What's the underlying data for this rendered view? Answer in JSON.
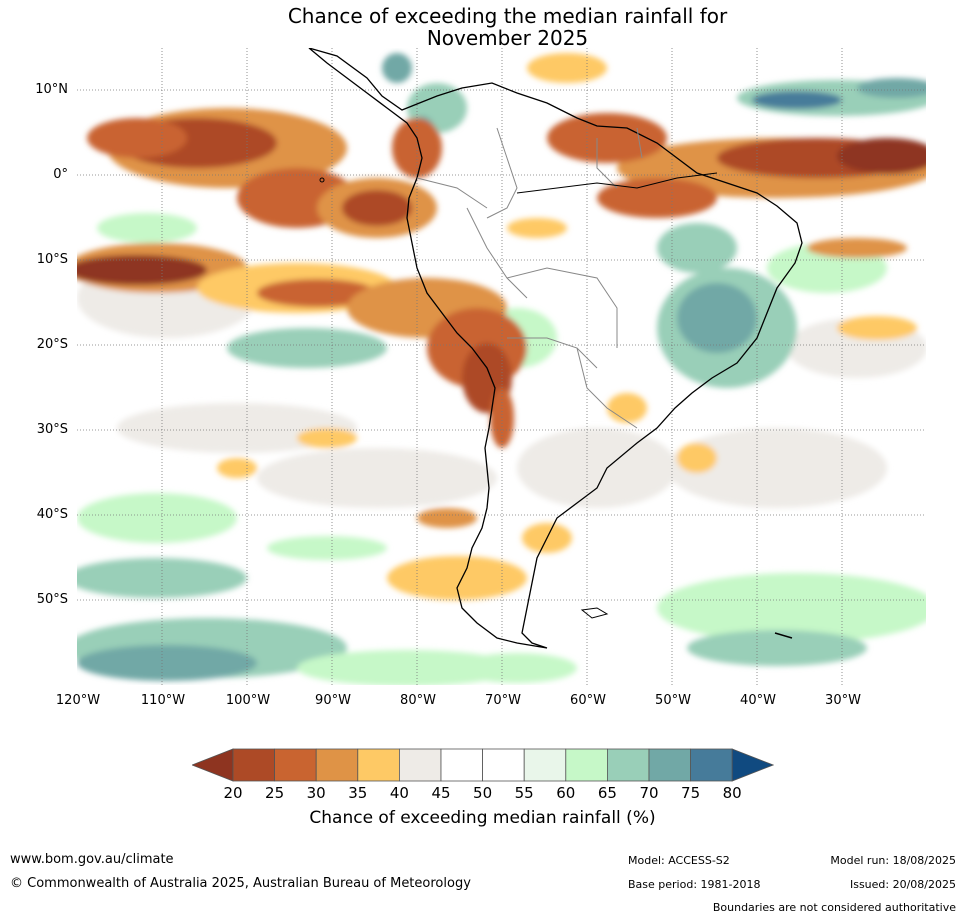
{
  "title": {
    "line1": "Chance of exceeding the median rainfall for",
    "line2": "November 2025"
  },
  "map": {
    "lat_labels": [
      "10°N",
      "0°",
      "10°S",
      "20°S",
      "30°S",
      "40°S",
      "50°S"
    ],
    "lon_labels": [
      "120°W",
      "110°W",
      "100°W",
      "90°W",
      "80°W",
      "70°W",
      "60°W",
      "50°W",
      "40°W",
      "30°W"
    ]
  },
  "colorbar": {
    "ticks": [
      "20",
      "25",
      "30",
      "35",
      "40",
      "45",
      "50",
      "55",
      "60",
      "65",
      "70",
      "75",
      "80"
    ],
    "colors": [
      "#8e3420",
      "#ad4a26",
      "#c96430",
      "#df9346",
      "#fec965",
      "#eeebe7",
      "#ffffff",
      "#ffffff",
      "#e9f6ea",
      "#c6f8c8",
      "#99cfb8",
      "#71a8a6",
      "#467b9a",
      "#104a80"
    ],
    "label": "Chance of exceeding median rainfall (%)"
  },
  "footer": {
    "website": "www.bom.gov.au/climate",
    "copyright": "© Commonwealth of Australia 2025, Australian Bureau of Meteorology",
    "model": "Model: ACCESS-S2",
    "base_period": "Base period: 1981-2018",
    "model_run": "Model run: 18/08/2025",
    "issued": "Issued: 20/08/2025",
    "boundaries_note": "Boundaries are not considered authoritative"
  }
}
